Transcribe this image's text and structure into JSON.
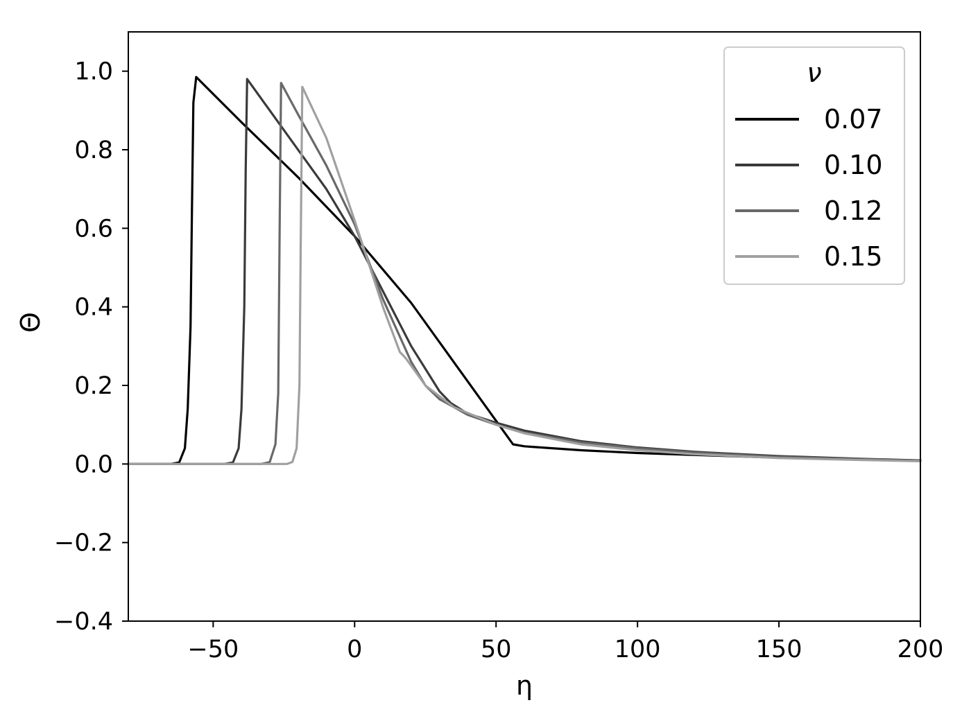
{
  "chart_data": {
    "type": "line",
    "title": "",
    "xlabel": "η",
    "ylabel": "Θ",
    "xlim": [
      -80,
      200
    ],
    "ylim": [
      -0.4,
      1.1
    ],
    "x_ticks": [
      -50,
      0,
      50,
      100,
      150,
      200
    ],
    "x_tick_labels": [
      "−50",
      "0",
      "50",
      "100",
      "150",
      "200"
    ],
    "y_ticks": [
      -0.4,
      -0.2,
      0.0,
      0.2,
      0.4,
      0.6,
      0.8,
      1.0
    ],
    "y_tick_labels": [
      "−0.4",
      "−0.2",
      "0.0",
      "0.2",
      "0.4",
      "0.6",
      "0.8",
      "1.0"
    ],
    "grid": false,
    "legend": {
      "title": "ν",
      "position": "top-right"
    },
    "series": [
      {
        "name": "0.07",
        "color": "#000000",
        "x": [
          -80,
          -65,
          -62,
          -60,
          -59,
          -58,
          -57.5,
          -57,
          -56,
          -40,
          -20,
          0,
          20,
          40,
          56,
          60,
          80,
          100,
          120,
          150,
          180,
          200
        ],
        "y": [
          0,
          0,
          0.004,
          0.04,
          0.14,
          0.35,
          0.65,
          0.92,
          0.985,
          0.87,
          0.73,
          0.58,
          0.41,
          0.21,
          0.05,
          0.045,
          0.035,
          0.028,
          0.023,
          0.016,
          0.011,
          0.009
        ]
      },
      {
        "name": "0.10",
        "color": "#3a3a3a",
        "x": [
          -80,
          -46,
          -43,
          -41,
          -40,
          -39,
          -38.5,
          -38,
          -30,
          -20,
          -10,
          0,
          10,
          20,
          30,
          34,
          40,
          50,
          60,
          80,
          100,
          120,
          150,
          180,
          200
        ],
        "y": [
          0,
          0,
          0.004,
          0.04,
          0.14,
          0.4,
          0.75,
          0.98,
          0.9,
          0.8,
          0.7,
          0.58,
          0.44,
          0.3,
          0.185,
          0.155,
          0.128,
          0.105,
          0.085,
          0.058,
          0.042,
          0.031,
          0.02,
          0.013,
          0.009
        ]
      },
      {
        "name": "0.12",
        "color": "#686868",
        "x": [
          -80,
          -33,
          -30,
          -28,
          -27,
          -26.5,
          -26,
          -20,
          -10,
          0,
          10,
          20,
          25,
          30,
          40,
          50,
          60,
          80,
          100,
          120,
          150,
          180,
          200
        ],
        "y": [
          0,
          0,
          0.005,
          0.05,
          0.18,
          0.6,
          0.97,
          0.89,
          0.76,
          0.61,
          0.42,
          0.26,
          0.2,
          0.165,
          0.125,
          0.1,
          0.08,
          0.055,
          0.04,
          0.029,
          0.018,
          0.012,
          0.008
        ]
      },
      {
        "name": "0.15",
        "color": "#a0a0a0",
        "x": [
          -80,
          -24,
          -22,
          -20.5,
          -19.5,
          -19,
          -18.5,
          -10,
          0,
          10,
          16,
          18,
          25,
          35,
          50,
          60,
          80,
          100,
          120,
          150,
          180,
          200
        ],
        "y": [
          0,
          0,
          0.005,
          0.04,
          0.2,
          0.6,
          0.96,
          0.83,
          0.62,
          0.4,
          0.285,
          0.27,
          0.2,
          0.145,
          0.1,
          0.078,
          0.05,
          0.035,
          0.025,
          0.015,
          0.01,
          0.007
        ]
      }
    ]
  }
}
